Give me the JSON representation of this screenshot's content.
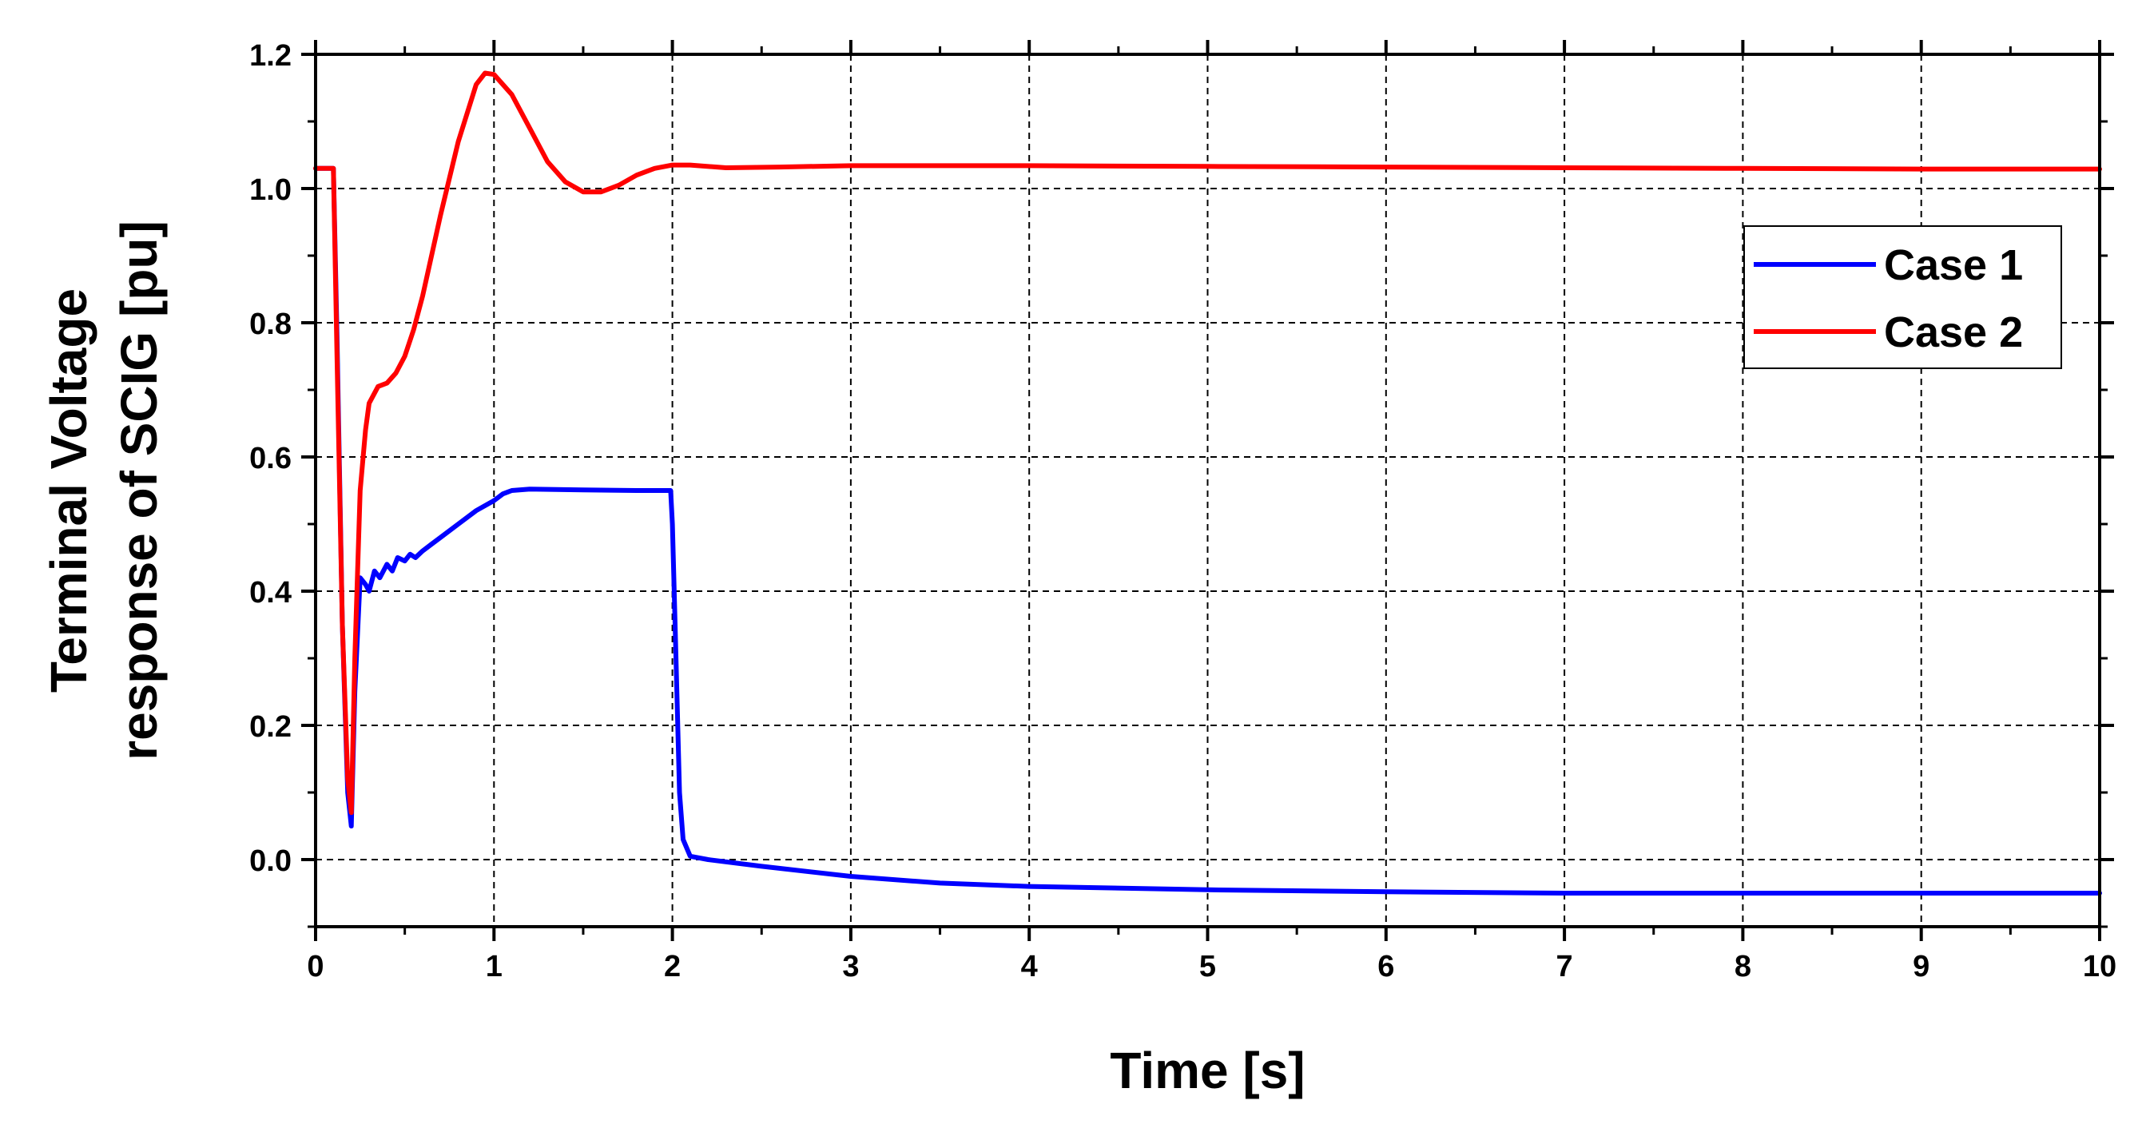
{
  "chart_data": {
    "type": "line",
    "xlabel": "Time [s]",
    "ylabel_line1": "Terminal Voltage",
    "ylabel_line2": "response of SCIG [pu]",
    "xlim": [
      0,
      10
    ],
    "ylim": [
      -0.1,
      1.2
    ],
    "x_ticks": [
      0,
      1,
      2,
      3,
      4,
      5,
      6,
      7,
      8,
      9,
      10
    ],
    "x_tick_labels": [
      "0",
      "1",
      "2",
      "3",
      "4",
      "5",
      "6",
      "7",
      "8",
      "9",
      "10"
    ],
    "y_ticks": [
      0.0,
      0.2,
      0.4,
      0.6,
      0.8,
      1.0,
      1.2
    ],
    "y_tick_labels": [
      "0.0",
      "0.2",
      "0.4",
      "0.6",
      "0.8",
      "1.0",
      "1.2"
    ],
    "grid": true,
    "legend_position": "top-right",
    "series": [
      {
        "name": "Case 1",
        "color": "#0000ff",
        "x": [
          0,
          0.1,
          0.12,
          0.15,
          0.18,
          0.2,
          0.22,
          0.25,
          0.28,
          0.3,
          0.33,
          0.36,
          0.4,
          0.43,
          0.46,
          0.5,
          0.53,
          0.56,
          0.6,
          0.65,
          0.7,
          0.8,
          0.9,
          1.0,
          1.05,
          1.1,
          1.2,
          1.5,
          1.8,
          1.99,
          2.0,
          2.02,
          2.04,
          2.06,
          2.1,
          2.2,
          2.5,
          3.0,
          3.5,
          4.0,
          5.0,
          6.0,
          7.0,
          8.0,
          9.0,
          10.0
        ],
        "y": [
          1.03,
          1.03,
          0.78,
          0.35,
          0.1,
          0.05,
          0.25,
          0.42,
          0.41,
          0.4,
          0.43,
          0.42,
          0.44,
          0.43,
          0.45,
          0.445,
          0.455,
          0.45,
          0.46,
          0.47,
          0.48,
          0.5,
          0.52,
          0.535,
          0.545,
          0.55,
          0.552,
          0.551,
          0.55,
          0.55,
          0.5,
          0.3,
          0.1,
          0.03,
          0.005,
          0.0,
          -0.01,
          -0.025,
          -0.035,
          -0.04,
          -0.045,
          -0.048,
          -0.05,
          -0.05,
          -0.05,
          -0.05
        ]
      },
      {
        "name": "Case 2",
        "color": "#ff0000",
        "x": [
          0,
          0.1,
          0.12,
          0.15,
          0.18,
          0.2,
          0.22,
          0.25,
          0.28,
          0.3,
          0.35,
          0.4,
          0.45,
          0.5,
          0.55,
          0.6,
          0.7,
          0.8,
          0.9,
          0.95,
          1.0,
          1.1,
          1.2,
          1.3,
          1.4,
          1.5,
          1.6,
          1.7,
          1.8,
          1.9,
          2.0,
          2.1,
          2.3,
          2.6,
          3.0,
          4.0,
          5.0,
          6.0,
          7.0,
          8.0,
          9.0,
          10.0
        ],
        "y": [
          1.03,
          1.03,
          0.75,
          0.35,
          0.12,
          0.07,
          0.3,
          0.55,
          0.64,
          0.68,
          0.705,
          0.71,
          0.725,
          0.75,
          0.79,
          0.84,
          0.96,
          1.07,
          1.155,
          1.172,
          1.17,
          1.14,
          1.09,
          1.04,
          1.01,
          0.995,
          0.995,
          1.005,
          1.02,
          1.03,
          1.035,
          1.035,
          1.031,
          1.032,
          1.034,
          1.034,
          1.033,
          1.032,
          1.031,
          1.03,
          1.029,
          1.029
        ]
      }
    ]
  }
}
